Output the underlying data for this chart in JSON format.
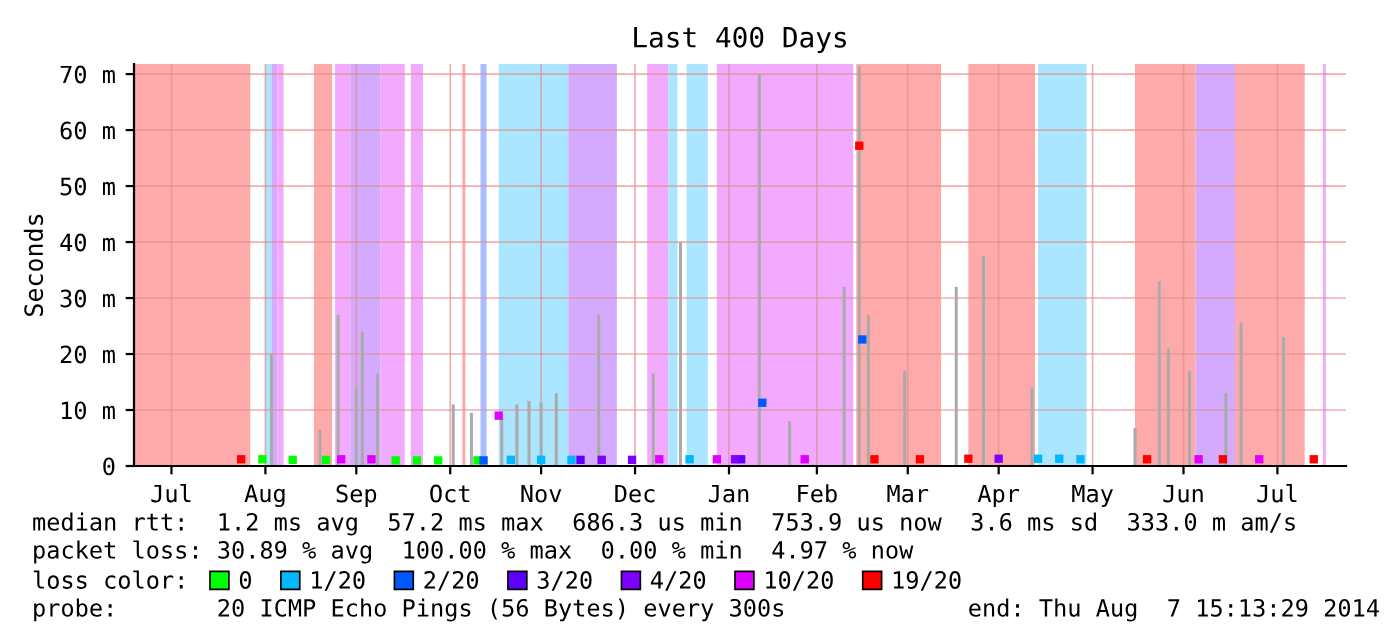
{
  "chart_data": {
    "type": "scatter",
    "title": "Last 400 Days",
    "ylabel": "Seconds",
    "xlim": [
      "2013-07-03T15:13",
      "2014-08-07T15:13"
    ],
    "xticks": [
      {
        "value": "2013-07-16",
        "label": "Jul"
      },
      {
        "value": "2013-08-16",
        "label": "Aug"
      },
      {
        "value": "2013-09-15",
        "label": "Sep"
      },
      {
        "value": "2013-10-16",
        "label": "Oct"
      },
      {
        "value": "2013-11-15",
        "label": "Nov"
      },
      {
        "value": "2013-12-16",
        "label": "Dec"
      },
      {
        "value": "2014-01-16",
        "label": "Jan"
      },
      {
        "value": "2014-02-14",
        "label": "Feb"
      },
      {
        "value": "2014-03-16",
        "label": "Mar"
      },
      {
        "value": "2014-04-15",
        "label": "Apr"
      },
      {
        "value": "2014-05-16",
        "label": "May"
      },
      {
        "value": "2014-06-15",
        "label": "Jun"
      },
      {
        "value": "2014-07-16",
        "label": "Jul"
      }
    ],
    "ylim": [
      0,
      71.8
    ],
    "yticks": [
      0,
      {
        "value": 10,
        "label": "10 m"
      },
      {
        "value": 20,
        "label": "20 m"
      },
      {
        "value": 30,
        "label": "30 m"
      },
      {
        "value": 40,
        "label": "40 m"
      },
      {
        "value": 50,
        "label": "50 m"
      },
      {
        "value": 60,
        "label": "60 m"
      },
      {
        "value": 70,
        "label": "70 m"
      }
    ],
    "grid": true,
    "legend": "bottom",
    "legend_title": "loss color:",
    "marker": "square",
    "bands": [
      {
        "axis": "x",
        "from": "2013-07-03T15:13",
        "to": "2013-08-11",
        "color": "#ffaaaa"
      },
      {
        "axis": "x",
        "from": "2013-08-16",
        "to": "2013-08-18",
        "color": "#aae6ff"
      },
      {
        "axis": "x",
        "from": "2013-08-18",
        "to": "2013-08-20",
        "color": "#d4aaff"
      },
      {
        "axis": "x",
        "from": "2013-08-20",
        "to": "2013-08-22",
        "color": "#f2aaff"
      },
      {
        "axis": "x",
        "from": "2013-09-01",
        "to": "2013-09-07",
        "color": "#ffaaaa"
      },
      {
        "axis": "x",
        "from": "2013-09-08",
        "to": "2013-09-13",
        "color": "#f2aaff"
      },
      {
        "axis": "x",
        "from": "2013-09-13",
        "to": "2013-09-23",
        "color": "#d4aaff"
      },
      {
        "axis": "x",
        "from": "2013-09-23",
        "to": "2013-10-01",
        "color": "#f2aaff"
      },
      {
        "axis": "x",
        "from": "2013-10-03",
        "to": "2013-10-07",
        "color": "#f2aaff"
      },
      {
        "axis": "x",
        "from": "2013-10-20",
        "to": "2013-10-21",
        "color": "#ffaaaa"
      },
      {
        "axis": "x",
        "from": "2013-10-26",
        "to": "2013-10-28",
        "color": "#aabfff"
      },
      {
        "axis": "x",
        "from": "2013-11-01",
        "to": "2013-11-24",
        "color": "#aae6ff"
      },
      {
        "axis": "x",
        "from": "2013-11-24",
        "to": "2013-12-10",
        "color": "#d4aaff"
      },
      {
        "axis": "x",
        "from": "2013-12-20",
        "to": "2013-12-27",
        "color": "#f2aaff"
      },
      {
        "axis": "x",
        "from": "2013-12-27",
        "to": "2013-12-30",
        "color": "#aae6ff"
      },
      {
        "axis": "x",
        "from": "2014-01-02",
        "to": "2014-01-09",
        "color": "#aae6ff"
      },
      {
        "axis": "x",
        "from": "2014-01-12",
        "to": "2014-02-26",
        "color": "#f2aaff"
      },
      {
        "axis": "x",
        "from": "2014-02-27",
        "to": "2014-03-27",
        "color": "#ffaaaa"
      },
      {
        "axis": "x",
        "from": "2014-04-05",
        "to": "2014-04-27",
        "color": "#ffaaaa"
      },
      {
        "axis": "x",
        "from": "2014-04-28",
        "to": "2014-05-14",
        "color": "#aae6ff"
      },
      {
        "axis": "x",
        "from": "2014-05-30",
        "to": "2014-06-19",
        "color": "#ffaaaa"
      },
      {
        "axis": "x",
        "from": "2014-06-19",
        "to": "2014-07-02",
        "color": "#d4aaff"
      },
      {
        "axis": "x",
        "from": "2014-07-02",
        "to": "2014-07-25",
        "color": "#ffaaaa"
      },
      {
        "axis": "x",
        "from": "2014-07-31",
        "to": "2014-08-01",
        "color": "#f2aaff"
      }
    ],
    "series": [
      {
        "type": "bar",
        "color": "#aaaaaa",
        "x": [
          "2013-08-18",
          "2013-09-03",
          "2013-09-09",
          "2013-09-15",
          "2013-09-17",
          "2013-09-22",
          "2013-10-17",
          "2013-10-23",
          "2013-11-02",
          "2013-11-07",
          "2013-11-11",
          "2013-11-15",
          "2013-11-20",
          "2013-12-04",
          "2013-12-22",
          "2013-12-31",
          "2014-01-26",
          "2014-02-05",
          "2014-02-23",
          "2014-02-28",
          "2014-03-03",
          "2014-03-15",
          "2014-04-01",
          "2014-04-10",
          "2014-04-26",
          "2014-05-30",
          "2014-06-07",
          "2014-06-10",
          "2014-06-17",
          "2014-06-29",
          "2014-07-04",
          "2014-07-18"
        ],
        "values": [
          20,
          6.5,
          27,
          14,
          24,
          16.5,
          11,
          9.5,
          8.6,
          11,
          11.6,
          11.3,
          13,
          27,
          16.5,
          40,
          70,
          8,
          32,
          71.5,
          27,
          17,
          32,
          37.5,
          14,
          6.8,
          33,
          21,
          17,
          13,
          25.6,
          23
        ]
      },
      {
        "name": "0",
        "color": "#00ff00",
        "x": [
          "2013-08-15",
          "2013-08-25",
          "2013-09-05",
          "2013-09-28",
          "2013-10-05",
          "2013-10-12",
          "2013-10-25"
        ],
        "values": [
          1.2,
          1.1,
          1.1,
          1,
          1,
          1,
          1
        ]
      },
      {
        "name": "1/20",
        "color": "#00b8ff",
        "x": [
          "2013-11-05",
          "2013-11-15",
          "2013-11-25",
          "2014-01-03",
          "2014-04-28",
          "2014-05-05",
          "2014-05-12"
        ],
        "values": [
          1.1,
          1.1,
          1.1,
          1.2,
          1.3,
          1.3,
          1.2
        ]
      },
      {
        "name": "2/20",
        "color": "#0059ff",
        "x": [
          "2013-10-27",
          "2014-01-27",
          "2014-03-01"
        ],
        "values": [
          1,
          11.3,
          22.6
        ]
      },
      {
        "name": "3/20",
        "color": "#5e00ff",
        "x": [
          "2013-11-28",
          "2014-01-20"
        ],
        "values": [
          1.1,
          1.2
        ]
      },
      {
        "name": "4/20",
        "color": "#7e00ff",
        "x": [
          "2013-12-05",
          "2013-12-15",
          "2014-01-18",
          "2014-04-15"
        ],
        "values": [
          1.1,
          1.1,
          1.2,
          1.3
        ]
      },
      {
        "name": "10/20",
        "color": "#dd00ff",
        "x": [
          "2013-09-10",
          "2013-09-20",
          "2013-11-01",
          "2013-12-24",
          "2014-01-12",
          "2014-02-10",
          "2014-06-20",
          "2014-07-10"
        ],
        "values": [
          1.2,
          1.2,
          9,
          1.2,
          1.2,
          1.2,
          1.2,
          1.2
        ]
      },
      {
        "name": "19/20",
        "color": "#ff0000",
        "x": [
          "2013-08-08",
          "2014-02-28",
          "2014-03-05",
          "2014-03-20",
          "2014-04-05",
          "2014-06-03",
          "2014-06-28",
          "2014-07-28"
        ],
        "values": [
          1.2,
          57.2,
          1.2,
          1.2,
          1.3,
          1.2,
          1.2,
          1.2
        ]
      }
    ],
    "annotations": [
      "median rtt:  1.2 ms avg  57.2 ms max  686.3 us min  753.9 us now  3.6 ms sd  333.0 m am/s",
      "packet loss: 30.89 % avg  100.00 % max  0.00 % min  4.97 % now",
      "probe:       20 ICMP Echo Pings (56 Bytes) every 300s",
      "end: Thu Aug  7 15:13:29 2014"
    ]
  }
}
